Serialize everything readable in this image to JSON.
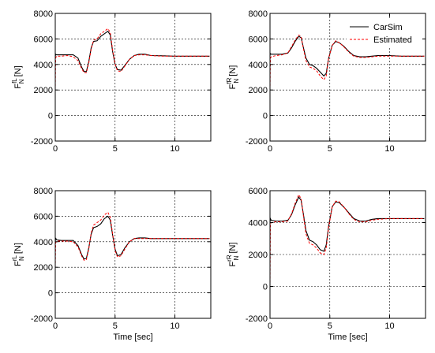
{
  "chart_data": [
    {
      "type": "line",
      "ylabel_main": "F",
      "ylabel_sub": "N",
      "ylabel_sup": "fL",
      "ylabel_unit": " [N]",
      "xlabel": "",
      "xlim": [
        0,
        13
      ],
      "ylim": [
        -2000,
        8000
      ],
      "xticks": [
        0,
        5,
        10
      ],
      "yticks": [
        -2000,
        0,
        2000,
        4000,
        6000,
        8000
      ],
      "grid": true,
      "legend": null,
      "series": [
        {
          "name": "CarSim",
          "color": "#000000",
          "dash": "solid",
          "x": [
            0,
            0.03,
            0.1,
            0.5,
            1.0,
            1.5,
            1.9,
            2.2,
            2.4,
            2.6,
            2.8,
            3.0,
            3.2,
            3.5,
            3.8,
            4.1,
            4.4,
            4.6,
            4.8,
            5.0,
            5.2,
            5.5,
            5.8,
            6.2,
            6.6,
            7.0,
            7.5,
            8.0,
            9.0,
            10.0,
            11.0,
            12.0,
            12.9
          ],
          "y": [
            4600,
            4800,
            4750,
            4750,
            4750,
            4750,
            4500,
            3800,
            3450,
            3450,
            4200,
            5300,
            5800,
            5850,
            6200,
            6400,
            6600,
            6300,
            5000,
            4000,
            3600,
            3550,
            3900,
            4400,
            4700,
            4800,
            4800,
            4700,
            4680,
            4650,
            4650,
            4650,
            4650
          ]
        },
        {
          "name": "Estimated",
          "color": "#ff0000",
          "dash": "dashed",
          "x": [
            0,
            0.03,
            0.1,
            0.5,
            1.0,
            1.5,
            1.9,
            2.2,
            2.4,
            2.6,
            2.8,
            3.0,
            3.2,
            3.5,
            3.8,
            4.1,
            4.4,
            4.6,
            4.8,
            5.0,
            5.2,
            5.5,
            5.8,
            6.2,
            6.6,
            7.0,
            7.5,
            8.0,
            9.0,
            10.0,
            11.0,
            12.0,
            12.9
          ],
          "y": [
            2000,
            4500,
            4650,
            4650,
            4700,
            4600,
            4300,
            3700,
            3350,
            3350,
            4100,
            5200,
            5900,
            6000,
            6400,
            6600,
            6800,
            6500,
            5100,
            4000,
            3500,
            3450,
            3850,
            4400,
            4700,
            4750,
            4750,
            4700,
            4650,
            4650,
            4650,
            4650,
            4650
          ]
        }
      ]
    },
    {
      "type": "line",
      "ylabel_main": "F",
      "ylabel_sub": "N",
      "ylabel_sup": "fR",
      "ylabel_unit": " [N]",
      "xlabel": "",
      "xlim": [
        0,
        13
      ],
      "ylim": [
        -2000,
        8000
      ],
      "xticks": [
        0,
        5,
        10
      ],
      "yticks": [
        -2000,
        0,
        2000,
        4000,
        6000,
        8000
      ],
      "grid": true,
      "legend": "top-right",
      "series": [
        {
          "name": "CarSim",
          "color": "#000000",
          "dash": "solid",
          "x": [
            0,
            0.03,
            0.1,
            0.5,
            1.0,
            1.5,
            1.8,
            2.1,
            2.4,
            2.6,
            2.8,
            3.0,
            3.3,
            3.6,
            3.9,
            4.2,
            4.5,
            4.7,
            4.9,
            5.2,
            5.5,
            5.8,
            6.2,
            6.6,
            7.0,
            7.5,
            8.0,
            8.5,
            9.0,
            10.0,
            11.0,
            12.0,
            12.9
          ],
          "y": [
            4700,
            4850,
            4800,
            4800,
            4800,
            4900,
            5300,
            5800,
            6200,
            6100,
            5300,
            4500,
            4000,
            3900,
            3700,
            3400,
            3100,
            3300,
            4500,
            5500,
            5800,
            5700,
            5400,
            5000,
            4700,
            4600,
            4600,
            4650,
            4700,
            4700,
            4650,
            4650,
            4650
          ]
        },
        {
          "name": "Estimated",
          "color": "#ff0000",
          "dash": "dashed",
          "x": [
            0,
            0.03,
            0.1,
            0.5,
            1.0,
            1.5,
            1.8,
            2.1,
            2.4,
            2.6,
            2.8,
            3.0,
            3.3,
            3.6,
            3.9,
            4.2,
            4.5,
            4.7,
            4.9,
            5.2,
            5.5,
            5.8,
            6.2,
            6.6,
            7.0,
            7.5,
            8.0,
            8.5,
            9.0,
            10.0,
            11.0,
            12.0,
            12.9
          ],
          "y": [
            2000,
            4500,
            4600,
            4700,
            4750,
            4900,
            5400,
            5900,
            6300,
            6200,
            5200,
            4300,
            3800,
            3700,
            3500,
            3100,
            2800,
            3100,
            4500,
            5500,
            5850,
            5700,
            5350,
            4950,
            4650,
            4550,
            4550,
            4600,
            4650,
            4650,
            4650,
            4650,
            4650
          ]
        }
      ]
    },
    {
      "type": "line",
      "ylabel_main": "F",
      "ylabel_sub": "N",
      "ylabel_sup": "rL",
      "ylabel_unit": " [N]",
      "xlabel": "Time [sec]",
      "xlim": [
        0,
        13
      ],
      "ylim": [
        -2000,
        8000
      ],
      "xticks": [
        0,
        5,
        10
      ],
      "yticks": [
        -2000,
        0,
        2000,
        4000,
        6000,
        8000
      ],
      "grid": true,
      "legend": null,
      "series": [
        {
          "name": "CarSim",
          "color": "#000000",
          "dash": "solid",
          "x": [
            0,
            0.03,
            0.1,
            0.5,
            1.0,
            1.5,
            1.9,
            2.2,
            2.4,
            2.6,
            2.8,
            3.0,
            3.2,
            3.5,
            3.8,
            4.1,
            4.4,
            4.6,
            4.8,
            5.0,
            5.2,
            5.5,
            5.8,
            6.2,
            6.6,
            7.0,
            7.5,
            8.0,
            9.0,
            10.0,
            11.0,
            12.0,
            12.9
          ],
          "y": [
            4000,
            4300,
            4150,
            4100,
            4100,
            4100,
            3700,
            3000,
            2650,
            2700,
            3500,
            4600,
            5100,
            5200,
            5400,
            5800,
            6000,
            5700,
            4500,
            3400,
            2900,
            3000,
            3500,
            4000,
            4250,
            4300,
            4300,
            4250,
            4250,
            4250,
            4250,
            4250,
            4250
          ]
        },
        {
          "name": "Estimated",
          "color": "#ff0000",
          "dash": "dashed",
          "x": [
            0,
            0.03,
            0.1,
            0.5,
            1.0,
            1.5,
            1.9,
            2.2,
            2.4,
            2.6,
            2.8,
            3.0,
            3.2,
            3.5,
            3.8,
            4.1,
            4.4,
            4.6,
            4.8,
            5.0,
            5.2,
            5.5,
            5.8,
            6.2,
            6.6,
            7.0,
            7.5,
            8.0,
            9.0,
            10.0,
            11.0,
            12.0,
            12.9
          ],
          "y": [
            2000,
            3900,
            4050,
            4050,
            4050,
            4000,
            3600,
            2900,
            2550,
            2600,
            3400,
            4700,
            5300,
            5500,
            5700,
            6100,
            6300,
            5900,
            4600,
            3300,
            2800,
            2900,
            3400,
            4000,
            4250,
            4250,
            4250,
            4250,
            4250,
            4250,
            4250,
            4250,
            4250
          ]
        }
      ]
    },
    {
      "type": "line",
      "ylabel_main": "F",
      "ylabel_sub": "N",
      "ylabel_sup": "rR",
      "ylabel_unit": " [N]",
      "xlabel": "Time [sec]",
      "xlim": [
        0,
        13
      ],
      "ylim": [
        -2000,
        6000
      ],
      "xticks": [
        0,
        5,
        10
      ],
      "yticks": [
        -2000,
        0,
        2000,
        4000,
        6000
      ],
      "grid": true,
      "legend": null,
      "series": [
        {
          "name": "CarSim",
          "color": "#000000",
          "dash": "solid",
          "x": [
            0,
            0.03,
            0.1,
            0.5,
            1.0,
            1.5,
            1.8,
            2.1,
            2.4,
            2.6,
            2.8,
            3.0,
            3.3,
            3.6,
            3.9,
            4.2,
            4.5,
            4.7,
            4.9,
            5.2,
            5.5,
            5.8,
            6.2,
            6.6,
            7.0,
            7.5,
            8.0,
            8.5,
            9.0,
            10.0,
            11.0,
            12.0,
            12.9
          ],
          "y": [
            4000,
            4250,
            4150,
            4100,
            4100,
            4150,
            4500,
            5100,
            5600,
            5400,
            4500,
            3500,
            2900,
            2800,
            2600,
            2300,
            2200,
            2600,
            3800,
            5000,
            5300,
            5250,
            4950,
            4600,
            4250,
            4100,
            4100,
            4200,
            4250,
            4250,
            4250,
            4250,
            4250
          ]
        },
        {
          "name": "Estimated",
          "color": "#ff0000",
          "dash": "dashed",
          "x": [
            0,
            0.03,
            0.1,
            0.5,
            1.0,
            1.5,
            1.8,
            2.1,
            2.4,
            2.6,
            2.8,
            3.0,
            3.3,
            3.6,
            3.9,
            4.2,
            4.5,
            4.7,
            4.9,
            5.2,
            5.5,
            5.8,
            6.2,
            6.6,
            7.0,
            7.5,
            8.0,
            8.5,
            9.0,
            10.0,
            11.0,
            12.0,
            12.9
          ],
          "y": [
            0,
            3900,
            4000,
            4050,
            4050,
            4100,
            4550,
            5200,
            5750,
            5500,
            4400,
            3300,
            2700,
            2600,
            2400,
            2100,
            2000,
            2400,
            3700,
            5000,
            5350,
            5300,
            4950,
            4550,
            4200,
            4050,
            4050,
            4150,
            4200,
            4250,
            4250,
            4250,
            4250
          ]
        }
      ]
    }
  ]
}
